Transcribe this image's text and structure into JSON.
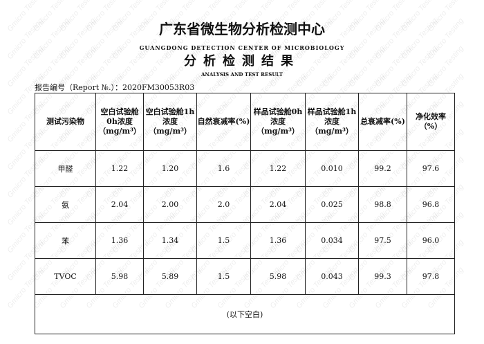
{
  "watermark": "Gmicro Testing",
  "title_cn": "广东省微生物分析检测中心",
  "title_en": "GUANGDONG DETECTION CENTER OF MICROBIOLOGY",
  "subtitle_cn": "分析检测结果",
  "subtitle_en": "ANALYSIS AND TEST RESULT",
  "report_no": "报告编号（Report №.）：2020FM30053R03",
  "table": {
    "headers": [
      "测试污染物",
      "空白试验舱0h浓度（mg/m³）",
      "空白试验舱1h浓度（mg/m³）",
      "自然衰减率(%)",
      "样品试验舱0h浓度（mg/m³）",
      "样品试验舱1h浓度（mg/m³）",
      "总衰减率(%)",
      "净化效率（%）"
    ],
    "rows": [
      [
        "甲醛",
        "1.22",
        "1.20",
        "1.6",
        "1.22",
        "0.010",
        "99.2",
        "97.6"
      ],
      [
        "氨",
        "2.04",
        "2.00",
        "2.0",
        "2.04",
        "0.025",
        "98.8",
        "96.8"
      ],
      [
        "苯",
        "1.36",
        "1.34",
        "1.5",
        "1.36",
        "0.034",
        "97.5",
        "96.0"
      ],
      [
        "TVOC",
        "5.98",
        "5.89",
        "1.5",
        "5.98",
        "0.043",
        "99.3",
        "97.8"
      ]
    ],
    "footer": "(以下空白)"
  }
}
